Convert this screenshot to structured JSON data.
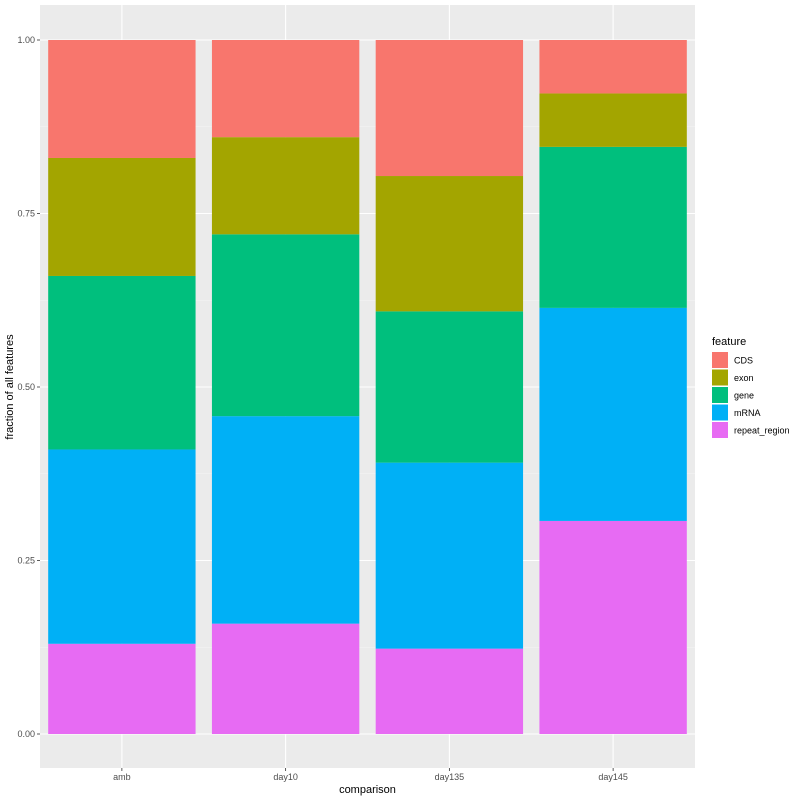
{
  "chart_data": {
    "type": "bar",
    "stacked": true,
    "xlabel": "comparison",
    "ylabel": "fraction of all features",
    "categories": [
      "amb",
      "day10",
      "day135",
      "day145"
    ],
    "ylim": [
      0,
      1
    ],
    "yticks": [
      0,
      0.25,
      0.5,
      0.75,
      1.0
    ],
    "ytick_labels": [
      "0.00",
      "0.25",
      "0.50",
      "0.75",
      "1.00"
    ],
    "grid": true,
    "legend": {
      "title": "feature",
      "position": "right",
      "entries": [
        "CDS",
        "exon",
        "gene",
        "mRNA",
        "repeat_region"
      ]
    },
    "stack_order_bottom_to_top": [
      "repeat_region",
      "mRNA",
      "gene",
      "exon",
      "CDS"
    ],
    "series": [
      {
        "name": "CDS",
        "color": "#F8766D",
        "values": [
          0.17,
          0.14,
          0.196,
          0.077
        ]
      },
      {
        "name": "exon",
        "color": "#A3A500",
        "values": [
          0.17,
          0.14,
          0.195,
          0.077
        ]
      },
      {
        "name": "gene",
        "color": "#00BF7D",
        "values": [
          0.25,
          0.262,
          0.218,
          0.232
        ]
      },
      {
        "name": "mRNA",
        "color": "#00B0F6",
        "values": [
          0.28,
          0.299,
          0.268,
          0.307
        ]
      },
      {
        "name": "repeat_region",
        "color": "#E76BF3",
        "values": [
          0.13,
          0.159,
          0.123,
          0.307
        ]
      }
    ]
  }
}
